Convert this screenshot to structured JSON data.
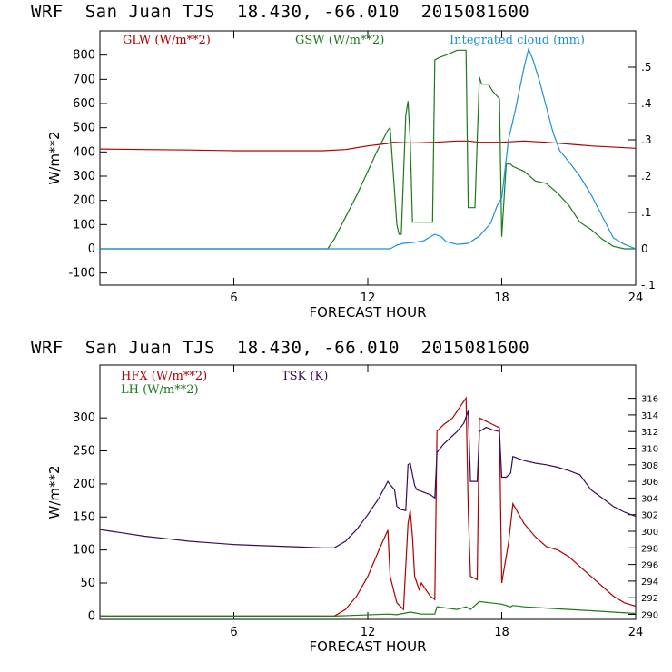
{
  "chart_data": [
    {
      "type": "line",
      "title": "WRF  San Juan TJS  18.430, -66.010  2015081600",
      "xlabel": "FORECAST HOUR",
      "ylabel": "W/m**2",
      "xlim": [
        0,
        24
      ],
      "ylim": [
        -150,
        900
      ],
      "y2lim": [
        -0.1,
        0.6
      ],
      "xticks": [
        "6",
        "12",
        "18",
        "24"
      ],
      "yticks": [
        "-100",
        "0",
        "100",
        "200",
        "300",
        "400",
        "500",
        "600",
        "700",
        "800"
      ],
      "y2ticks": [
        "-.1",
        "0",
        ".1",
        ".2",
        ".3",
        ".4",
        ".5"
      ],
      "legend": [
        "GLW (W/m**2)",
        "GSW (W/m**2)",
        "Integrated cloud (mm)"
      ],
      "colors": {
        "GLW": "#b00000",
        "GSW": "#1a7a1a",
        "cloud": "#1e8fd8"
      },
      "series": [
        {
          "name": "GLW (W/m**2)",
          "axis": "left",
          "x": [
            0,
            2,
            4,
            6,
            8,
            10,
            11,
            12,
            12.9,
            13.1,
            14,
            15,
            16,
            16.5,
            17,
            18,
            19,
            20,
            22,
            24
          ],
          "y": [
            412,
            410,
            408,
            405,
            405,
            405,
            410,
            425,
            435,
            440,
            437,
            440,
            445,
            445,
            440,
            440,
            445,
            440,
            425,
            415
          ]
        },
        {
          "name": "GSW (W/m**2)",
          "axis": "left",
          "x": [
            0,
            10.2,
            10.5,
            11,
            11.5,
            12,
            12.4,
            12.9,
            13.0,
            13.3,
            13.4,
            13.5,
            13.7,
            13.8,
            13.9,
            14.0,
            14.9,
            15.0,
            15.2,
            15.5,
            16.0,
            16.4,
            16.5,
            16.8,
            17.0,
            17.1,
            17.4,
            17.6,
            17.9,
            18.0,
            18.2,
            18.4,
            18.5,
            19.0,
            19.5,
            20.0,
            20.5,
            21.0,
            21.5,
            22.0,
            22.5,
            23.0,
            23.5,
            24
          ],
          "y": [
            0,
            0,
            40,
            130,
            220,
            320,
            400,
            490,
            500,
            100,
            60,
            60,
            550,
            610,
            450,
            110,
            110,
            780,
            790,
            800,
            820,
            820,
            170,
            170,
            710,
            680,
            680,
            650,
            620,
            50,
            350,
            350,
            340,
            320,
            280,
            270,
            230,
            180,
            110,
            80,
            40,
            10,
            0,
            0
          ]
        },
        {
          "name": "Integrated cloud (mm)",
          "axis": "right",
          "x": [
            0,
            12.5,
            13.0,
            13.3,
            13.6,
            14.0,
            14.5,
            15.0,
            15.3,
            15.5,
            16.0,
            16.5,
            17.0,
            17.5,
            17.8,
            18.0,
            18.3,
            18.6,
            19.0,
            19.2,
            19.4,
            19.7,
            20.0,
            20.3,
            20.6,
            21.0,
            21.5,
            22.0,
            22.5,
            23.0,
            23.5,
            24
          ],
          "y": [
            0,
            0,
            0,
            0.01,
            0.015,
            0.017,
            0.022,
            0.04,
            0.033,
            0.02,
            0.012,
            0.015,
            0.035,
            0.07,
            0.12,
            0.14,
            0.3,
            0.38,
            0.5,
            0.55,
            0.52,
            0.46,
            0.39,
            0.32,
            0.27,
            0.24,
            0.2,
            0.15,
            0.09,
            0.03,
            0.012,
            0
          ]
        }
      ]
    },
    {
      "type": "line",
      "title": "WRF  San Juan TJS  18.430, -66.010  2015081600",
      "xlabel": "FORECAST HOUR",
      "ylabel": "W/m**2",
      "xlim": [
        0,
        24
      ],
      "ylim": [
        -5,
        380
      ],
      "y2lim": [
        289.4,
        320
      ],
      "xticks": [
        "6",
        "12",
        "18",
        "24"
      ],
      "yticks": [
        "0",
        "50",
        "100",
        "150",
        "200",
        "250",
        "300"
      ],
      "y2ticks": [
        "290",
        "292",
        "294",
        "296",
        "298",
        "300",
        "302",
        "304",
        "306",
        "308",
        "310",
        "312",
        "314",
        "316"
      ],
      "legend": [
        "HFX (W/m**2)",
        "LH (W/m**2)",
        "TSK (K)"
      ],
      "colors": {
        "HFX": "#b00000",
        "LH": "#1a7a1a",
        "TSK": "#3a0a5a"
      },
      "series": [
        {
          "name": "HFX (W/m**2)",
          "axis": "left",
          "x": [
            0,
            10.5,
            11,
            11.5,
            12,
            12.5,
            12.9,
            13.0,
            13.3,
            13.6,
            13.8,
            13.9,
            14.0,
            14.1,
            14.2,
            14.3,
            14.4,
            14.6,
            14.8,
            15.0,
            15.1,
            15.4,
            15.8,
            16.2,
            16.4,
            16.5,
            16.6,
            16.9,
            17.0,
            17.3,
            17.6,
            17.9,
            18.0,
            18.3,
            18.5,
            19,
            19.5,
            20,
            20.5,
            21,
            21.5,
            22,
            22.5,
            23,
            23.5,
            24
          ],
          "y": [
            0,
            0,
            10,
            30,
            60,
            100,
            130,
            60,
            20,
            10,
            140,
            160,
            120,
            60,
            50,
            40,
            50,
            40,
            30,
            25,
            280,
            290,
            300,
            320,
            330,
            160,
            60,
            55,
            300,
            295,
            290,
            285,
            50,
            110,
            170,
            140,
            120,
            105,
            100,
            90,
            75,
            60,
            45,
            30,
            20,
            15
          ]
        },
        {
          "name": "LH (W/m**2)",
          "axis": "left",
          "x": [
            0,
            10.5,
            12.9,
            13.3,
            13.9,
            14.4,
            15.0,
            15.1,
            16.0,
            16.4,
            16.6,
            17.0,
            17.5,
            18.0,
            18.4,
            18.5,
            19,
            20,
            21,
            22,
            23,
            24
          ],
          "y": [
            0,
            0,
            3,
            2,
            6,
            3,
            3,
            14,
            10,
            14,
            10,
            22,
            20,
            18,
            14,
            16,
            14,
            12,
            10,
            8,
            6,
            4
          ]
        },
        {
          "name": "TSK (K)",
          "axis": "right",
          "x": [
            0,
            0.5,
            1,
            2,
            3,
            4,
            5,
            6,
            7,
            8,
            9,
            10,
            10.3,
            10.5,
            11,
            11.5,
            12,
            12.5,
            12.9,
            13.0,
            13.2,
            13.3,
            13.5,
            13.7,
            13.8,
            13.9,
            14.1,
            14.2,
            14.4,
            14.6,
            14.8,
            15.0,
            15.1,
            15.4,
            15.8,
            16.0,
            16.3,
            16.5,
            16.6,
            16.8,
            16.9,
            17.0,
            17.3,
            17.6,
            17.9,
            18.0,
            18.2,
            18.4,
            18.5,
            19,
            19.5,
            20,
            20.5,
            21,
            21.5,
            22,
            22.5,
            23,
            23.5,
            24
          ],
          "y": [
            300.2,
            300.0,
            299.8,
            299.4,
            299.1,
            298.8,
            298.6,
            298.4,
            298.3,
            298.2,
            298.1,
            298.0,
            298.0,
            298.0,
            298.8,
            300.2,
            302.0,
            304.0,
            306.0,
            305.6,
            305.0,
            303.0,
            302.6,
            302.5,
            308.0,
            308.2,
            305.5,
            305.0,
            304.8,
            304.6,
            304.4,
            304.0,
            309.5,
            310.5,
            311.5,
            312.0,
            313.0,
            314.5,
            306.0,
            306.0,
            306.0,
            312.0,
            312.5,
            312.2,
            312.0,
            306.5,
            306.5,
            307.0,
            309.0,
            308.5,
            308.2,
            308.0,
            307.7,
            307.3,
            306.8,
            305.0,
            304.0,
            303.0,
            302.3,
            301.8
          ]
        }
      ]
    }
  ]
}
